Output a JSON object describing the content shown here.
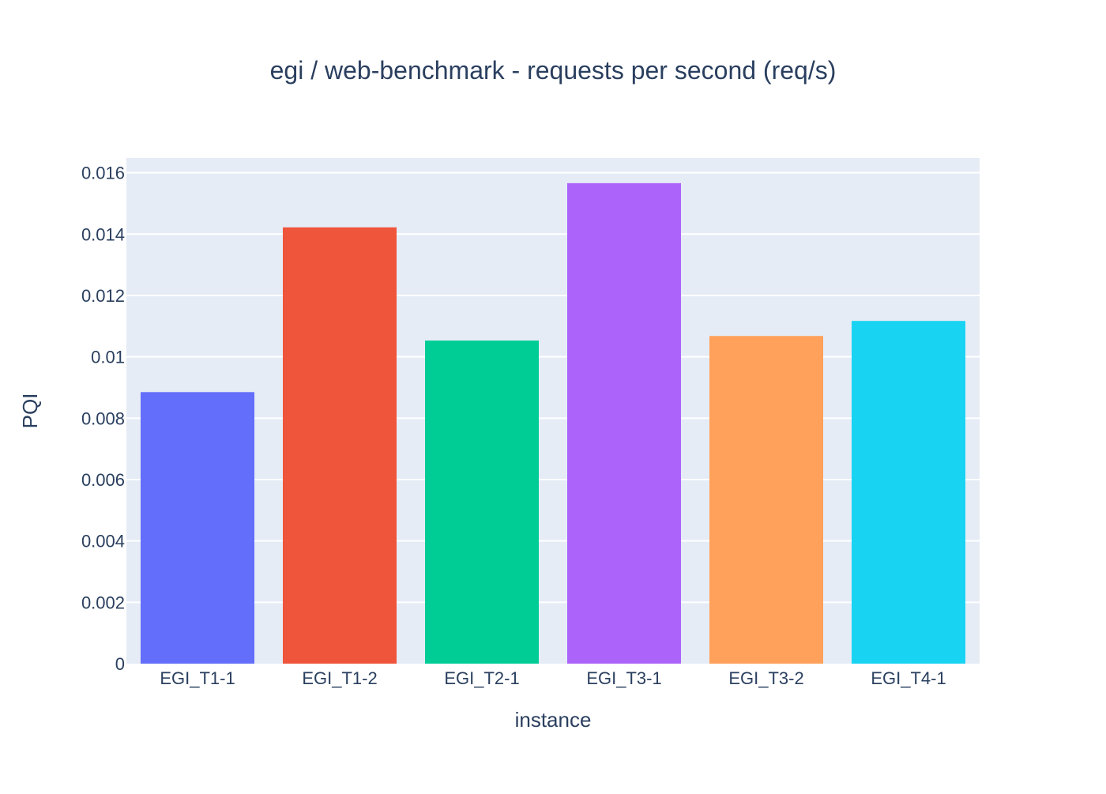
{
  "chart_data": {
    "type": "bar",
    "title": "egi / web-benchmark - requests per second (req/s)",
    "xlabel": "instance",
    "ylabel": "PQI",
    "categories": [
      "EGI_T1-1",
      "EGI_T1-2",
      "EGI_T2-1",
      "EGI_T3-1",
      "EGI_T3-2",
      "EGI_T4-1"
    ],
    "values": [
      0.00885,
      0.01422,
      0.01053,
      0.01566,
      0.01068,
      0.01117
    ],
    "colors": [
      "#636efa",
      "#ef553b",
      "#00cc96",
      "#ab63fa",
      "#ffa15a",
      "#19d3f3"
    ],
    "ylim": [
      0,
      0.01648
    ],
    "yticks": [
      0,
      0.002,
      0.004,
      0.006,
      0.008,
      0.01,
      0.012,
      0.014,
      0.016
    ],
    "ytick_labels": [
      "0",
      "0.002",
      "0.004",
      "0.006",
      "0.008",
      "0.01",
      "0.012",
      "0.014",
      "0.016"
    ],
    "grid": true,
    "legend": "none",
    "plot_bgcolor": "#e5ecf6",
    "gridcolor": "#ffffff",
    "text_color": "#2a3f5f"
  }
}
